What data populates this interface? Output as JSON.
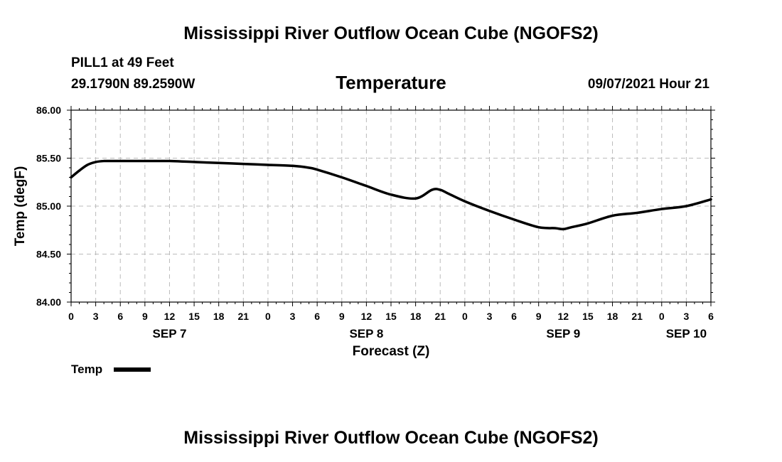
{
  "page": {
    "title_top": "Mississippi River Outflow Ocean Cube (NGOFS2)",
    "title_bottom": "Mississippi River Outflow Ocean Cube (NGOFS2)",
    "station": "PILL1 at 49 Feet",
    "coords": "29.1790N  89.2590W",
    "datetime": "09/07/2021 Hour 21"
  },
  "colors": {
    "line": "#000000",
    "grid": "#bbbbbb",
    "frame": "#000000"
  },
  "chart_data": {
    "type": "line",
    "title": "Temperature",
    "xlabel": "Forecast (Z)",
    "ylabel": "Temp (degF)",
    "ylim": [
      84.0,
      86.0
    ],
    "yticks": [
      84.0,
      84.5,
      85.0,
      85.5,
      86.0
    ],
    "ytick_labels": [
      "84.00",
      "84.50",
      "85.00",
      "85.50",
      "86.00"
    ],
    "xlim": [
      0,
      78
    ],
    "xticks": [
      0,
      3,
      6,
      9,
      12,
      15,
      18,
      21,
      24,
      27,
      30,
      33,
      36,
      39,
      42,
      45,
      48,
      51,
      54,
      57,
      60,
      63,
      66,
      69,
      72,
      75,
      78
    ],
    "xtick_labels": [
      "0",
      "3",
      "6",
      "9",
      "12",
      "15",
      "18",
      "21",
      "0",
      "3",
      "6",
      "9",
      "12",
      "15",
      "18",
      "21",
      "0",
      "3",
      "6",
      "9",
      "12",
      "15",
      "18",
      "21",
      "0",
      "3",
      "6"
    ],
    "day_labels": [
      {
        "label": "SEP 7",
        "x": 12
      },
      {
        "label": "SEP 8",
        "x": 36
      },
      {
        "label": "SEP 9",
        "x": 60
      },
      {
        "label": "SEP 10",
        "x": 75
      }
    ],
    "grid": true,
    "legend": {
      "label": "Temp",
      "position": "bottom-left"
    },
    "series": [
      {
        "name": "Temp",
        "x": [
          0,
          1,
          2,
          3,
          4,
          5,
          6,
          9,
          12,
          15,
          18,
          21,
          24,
          27,
          29,
          30,
          33,
          36,
          39,
          42,
          44,
          45,
          46,
          48,
          51,
          54,
          57,
          59,
          60,
          61,
          63,
          66,
          69,
          72,
          75,
          78
        ],
        "values": [
          85.3,
          85.37,
          85.43,
          85.46,
          85.47,
          85.47,
          85.47,
          85.47,
          85.47,
          85.46,
          85.45,
          85.44,
          85.43,
          85.42,
          85.4,
          85.38,
          85.3,
          85.21,
          85.12,
          85.08,
          85.17,
          85.17,
          85.13,
          85.05,
          84.95,
          84.86,
          84.78,
          84.77,
          84.76,
          84.78,
          84.82,
          84.9,
          84.93,
          84.97,
          85.0,
          85.07
        ]
      }
    ]
  }
}
